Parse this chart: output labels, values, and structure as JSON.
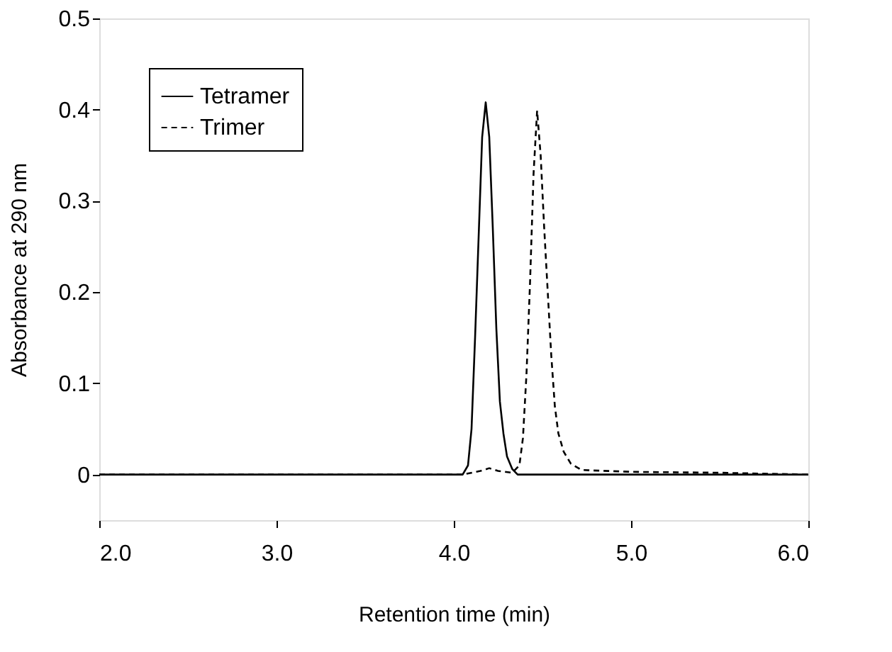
{
  "chart_data": {
    "type": "line",
    "xlabel": "Retention time (min)",
    "ylabel": "Absorbance at 290 nm",
    "xlim": [
      2.0,
      6.0
    ],
    "ylim": [
      -0.05,
      0.5
    ],
    "xticks": [
      {
        "value": 2,
        "label": "2.0"
      },
      {
        "value": 3,
        "label": "3.0"
      },
      {
        "value": 4,
        "label": "4.0"
      },
      {
        "value": 5,
        "label": "5.0"
      },
      {
        "value": 6,
        "label": "6.0"
      }
    ],
    "yticks": [
      0,
      0.1,
      0.2,
      0.3,
      0.4,
      0.5
    ],
    "grid": false,
    "legend": "top left",
    "marker": "none",
    "series": [
      {
        "name": "Tetramer",
        "color": "#000000",
        "line_style": "solid",
        "x": [
          2.0,
          4.05,
          4.08,
          4.1,
          4.12,
          4.14,
          4.16,
          4.18,
          4.2,
          4.22,
          4.24,
          4.26,
          4.28,
          4.3,
          4.33,
          4.36,
          6.0
        ],
        "values": [
          0,
          0,
          0.01,
          0.05,
          0.15,
          0.26,
          0.37,
          0.408,
          0.37,
          0.27,
          0.16,
          0.08,
          0.045,
          0.02,
          0.006,
          0,
          0
        ]
      },
      {
        "name": "Trimer",
        "color": "#000000",
        "line_style": "dashed",
        "x": [
          2.0,
          4.05,
          4.15,
          4.2,
          4.25,
          4.33,
          4.37,
          4.39,
          4.41,
          4.43,
          4.45,
          4.47,
          4.49,
          4.51,
          4.53,
          4.55,
          4.57,
          4.59,
          4.62,
          4.66,
          4.72,
          5.0,
          5.5,
          6.0
        ],
        "values": [
          0,
          0,
          0.004,
          0.007,
          0.004,
          0.002,
          0.01,
          0.04,
          0.11,
          0.21,
          0.33,
          0.399,
          0.35,
          0.27,
          0.2,
          0.13,
          0.075,
          0.045,
          0.025,
          0.012,
          0.005,
          0.003,
          0.002,
          0
        ]
      }
    ]
  }
}
